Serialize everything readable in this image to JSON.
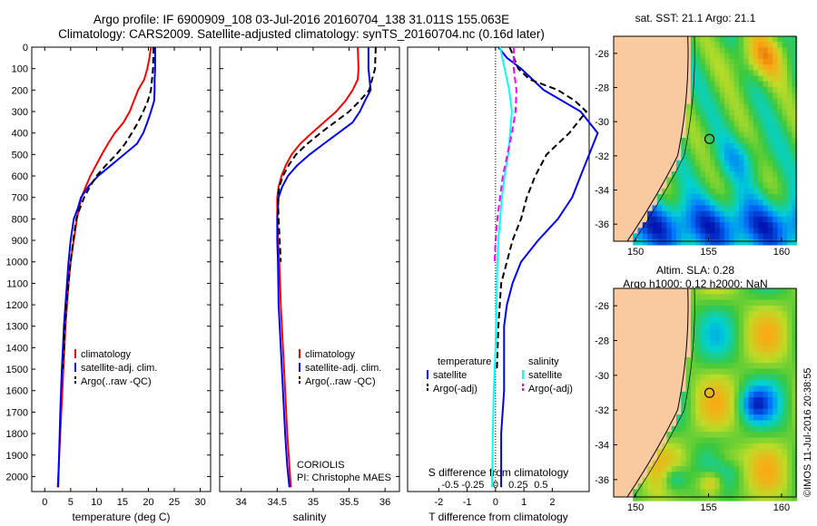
{
  "header": {
    "line1": "Argo profile: IF 6900909_108 03-Jul-2016 20160704_138 31.011S 155.063E",
    "line2": "Climatology: CARS2009. Satellite-adjusted climatology: synTS_20160704.nc (0.16d later)"
  },
  "side_stamp": "©IMOS 11-Jul-2016 20:38:55",
  "colors": {
    "climatology": "#ff0000",
    "satellite": "#0000ff",
    "argo": "#000000",
    "sal_sat": "#00ffff",
    "sal_argo": "#ff00ff",
    "land": "#f9c9a0"
  },
  "chart_data": [
    {
      "type": "line",
      "xlabel": "temperature (deg C)",
      "ylabel": "",
      "xlim": [
        -2.5,
        32
      ],
      "ylim": [
        2070,
        0
      ],
      "xticks": [
        0,
        5,
        10,
        15,
        20,
        25,
        30
      ],
      "yticks": [
        0,
        100,
        200,
        300,
        400,
        500,
        600,
        700,
        800,
        900,
        1000,
        1100,
        1200,
        1300,
        1400,
        1500,
        1600,
        1700,
        1800,
        1900,
        2000
      ],
      "legend": {
        "placement": "lower-left",
        "entries": [
          "climatology",
          "satellite-adj. clim.",
          "Argo(..raw -QC)"
        ]
      },
      "series": [
        {
          "name": "climatology",
          "color": "#ff0000",
          "dash": "",
          "x": [
            20.5,
            20.2,
            19.8,
            19.2,
            18.0,
            16.4,
            15.2,
            13.5,
            12.2,
            11.0,
            9.9,
            8.8,
            7.9,
            7.1,
            6.6,
            6.2,
            5.6,
            5.0,
            4.6,
            4.3,
            4.0,
            3.8,
            3.6,
            3.4,
            3.2,
            2.8,
            2.5
          ],
          "y": [
            0,
            50,
            100,
            150,
            200,
            300,
            350,
            400,
            450,
            500,
            550,
            600,
            650,
            700,
            750,
            800,
            900,
            1000,
            1100,
            1200,
            1300,
            1400,
            1500,
            1600,
            1700,
            1900,
            2050
          ]
        },
        {
          "name": "satellite-adj. clim.",
          "color": "#0000ff",
          "dash": "",
          "x": [
            21.3,
            21.3,
            21.2,
            21.2,
            21.1,
            20.5,
            19.8,
            19.0,
            17.8,
            15.3,
            12.8,
            10.3,
            8.4,
            7.0,
            6.4,
            5.6,
            5.0,
            4.6,
            4.3,
            4.0,
            3.7,
            3.5,
            3.3,
            3.0,
            2.6
          ],
          "y": [
            0,
            100,
            150,
            200,
            250,
            300,
            350,
            400,
            450,
            500,
            550,
            600,
            650,
            700,
            750,
            800,
            900,
            1000,
            1100,
            1200,
            1300,
            1400,
            1500,
            1700,
            2050
          ]
        },
        {
          "name": "Argo(..raw -QC)",
          "color": "#000000",
          "dash": "7,4",
          "x": [
            21.0,
            20.9,
            20.5,
            19.9,
            19.0,
            18.0,
            16.8,
            15.5,
            13.8,
            11.8,
            10.0,
            8.7,
            7.6,
            6.8,
            6.1,
            5.5,
            5.0,
            4.6,
            4.2,
            3.9,
            3.7,
            3.5
          ],
          "y": [
            0,
            100,
            200,
            250,
            300,
            350,
            400,
            450,
            500,
            550,
            600,
            650,
            700,
            750,
            800,
            900,
            1000,
            1100,
            1200,
            1300,
            1400,
            1500
          ]
        }
      ]
    },
    {
      "type": "line",
      "xlabel": "salinity",
      "ylabel": "",
      "xlim": [
        33.7,
        36.2
      ],
      "ylim": [
        2070,
        0
      ],
      "xticks": [
        34,
        34.5,
        35,
        35.5,
        36
      ],
      "yticks": [
        0,
        100,
        200,
        300,
        400,
        500,
        600,
        700,
        800,
        900,
        1000,
        1100,
        1200,
        1300,
        1400,
        1500,
        1600,
        1700,
        1800,
        1900,
        2000
      ],
      "legend": {
        "placement": "lower-right",
        "entries": [
          "climatology",
          "satellite-adj. clim.",
          "Argo(..raw -QC)"
        ]
      },
      "annotation": [
        "CORIOLIS",
        "PI: Christophe MAES"
      ],
      "series": [
        {
          "name": "climatology",
          "color": "#ff0000",
          "dash": "",
          "x": [
            35.62,
            35.63,
            35.62,
            35.55,
            35.45,
            35.32,
            35.15,
            34.98,
            34.82,
            34.7,
            34.62,
            34.56,
            34.52,
            34.5,
            34.5,
            34.51,
            34.53,
            34.55,
            34.58,
            34.61,
            34.64,
            34.67,
            34.69
          ],
          "y": [
            0,
            100,
            150,
            200,
            250,
            300,
            350,
            400,
            450,
            500,
            550,
            600,
            650,
            700,
            800,
            900,
            1000,
            1200,
            1400,
            1600,
            1800,
            1950,
            2050
          ]
        },
        {
          "name": "satellite-adj. clim.",
          "color": "#0000ff",
          "dash": "",
          "x": [
            35.77,
            35.77,
            35.8,
            35.72,
            35.65,
            35.55,
            35.35,
            35.15,
            34.95,
            34.78,
            34.65,
            34.57,
            34.52,
            34.5,
            34.5,
            34.51,
            34.52,
            34.55,
            34.58,
            34.61,
            34.64,
            34.67
          ],
          "y": [
            0,
            100,
            200,
            250,
            300,
            350,
            400,
            450,
            500,
            550,
            600,
            650,
            700,
            800,
            900,
            1000,
            1200,
            1400,
            1600,
            1800,
            1950,
            2050
          ]
        },
        {
          "name": "Argo(..raw -QC)",
          "color": "#000000",
          "dash": "7,4",
          "x": [
            35.87,
            35.86,
            35.82,
            35.78,
            35.65,
            35.5,
            35.3,
            35.1,
            34.92,
            34.76,
            34.66,
            34.58,
            34.53,
            34.51,
            34.52,
            34.55
          ],
          "y": [
            0,
            100,
            150,
            200,
            250,
            300,
            350,
            400,
            450,
            500,
            550,
            600,
            650,
            700,
            800,
            1000
          ]
        }
      ]
    },
    {
      "type": "line",
      "xlabel": "T difference from climatology",
      "xlabel2": "S difference from climatology",
      "xlim": [
        -3.1,
        3.3
      ],
      "xticks": [
        -2,
        -1,
        0,
        1,
        2
      ],
      "xticks2": [
        -0.5,
        -0.25,
        0,
        0.25,
        0.5
      ],
      "ylim": [
        2070,
        0
      ],
      "legend": {
        "placement": "lower",
        "temperature": {
          "title": "temperature",
          "entries": [
            "satellite",
            "Argo(-adj)"
          ]
        },
        "salinity": {
          "title": "salinity",
          "entries": [
            "satellite",
            "Argo(-adj)"
          ]
        }
      },
      "series": [
        {
          "name": "temperature satellite",
          "color": "#0000ff",
          "dash": "",
          "x": [
            0.1,
            0.4,
            0.9,
            1.3,
            1.7,
            3.0,
            3.6,
            3.3,
            3.0,
            2.7,
            2.2,
            1.5,
            0.9,
            0.6,
            0.4,
            0.3,
            0.3,
            0.3,
            0.3,
            0.2,
            0.2
          ],
          "y": [
            0,
            50,
            100,
            150,
            200,
            300,
            400,
            500,
            600,
            700,
            800,
            900,
            1000,
            1100,
            1200,
            1300,
            1400,
            1500,
            1600,
            1800,
            2050
          ]
        },
        {
          "name": "temperature Argo(-adj)",
          "color": "#000000",
          "dash": "7,4",
          "x": [
            0.5,
            0.8,
            1.2,
            2.2,
            2.8,
            3.2,
            2.6,
            1.8,
            1.4,
            1.1,
            0.9,
            0.6,
            0.4,
            0.2,
            0.1,
            0.05
          ],
          "y": [
            0,
            100,
            150,
            200,
            250,
            300,
            400,
            500,
            600,
            700,
            800,
            900,
            1000,
            1100,
            1300,
            1500
          ]
        },
        {
          "name": "salinity satellite",
          "color": "#00ffff",
          "dash": "",
          "x": [
            0.05,
            0.1,
            0.15,
            0.18,
            0.16,
            0.14,
            0.1,
            0.07,
            0.05,
            0.03,
            0.02,
            0.01,
            0.0,
            -0.02,
            -0.03,
            -0.04
          ],
          "y": [
            0,
            100,
            200,
            300,
            400,
            500,
            600,
            700,
            800,
            900,
            1000,
            1200,
            1400,
            1600,
            1800,
            2050
          ]
        },
        {
          "name": "salinity Argo(-adj)",
          "color": "#ff00ff",
          "dash": "7,4",
          "x": [
            0.2,
            0.2,
            0.23,
            0.22,
            0.18,
            0.13,
            0.08,
            0.05,
            0.02,
            0.0,
            -0.01
          ],
          "y": [
            0,
            100,
            200,
            300,
            400,
            500,
            600,
            700,
            800,
            900,
            1000
          ]
        }
      ]
    },
    {
      "type": "heatmap",
      "title": "sat. SST: 21.1  Argo: 21.1",
      "xticks": [
        150,
        155,
        160
      ],
      "yticks": [
        -26,
        -28,
        -30,
        -32,
        -34,
        -36
      ],
      "xlim": [
        148.5,
        161
      ],
      "ylim": [
        -37,
        -25
      ],
      "marker": {
        "lon": 155.063,
        "lat": -31.011
      }
    },
    {
      "type": "heatmap",
      "title": "Altim. SLA: 0.28",
      "subtitle": "Argo h1000: 0.12  h2000: NaN",
      "xticks": [
        150,
        155,
        160
      ],
      "yticks": [
        -26,
        -28,
        -30,
        -32,
        -34,
        -36
      ],
      "xlim": [
        148.5,
        161
      ],
      "ylim": [
        -37,
        -25
      ],
      "marker": {
        "lon": 155.063,
        "lat": -31.011
      }
    }
  ]
}
